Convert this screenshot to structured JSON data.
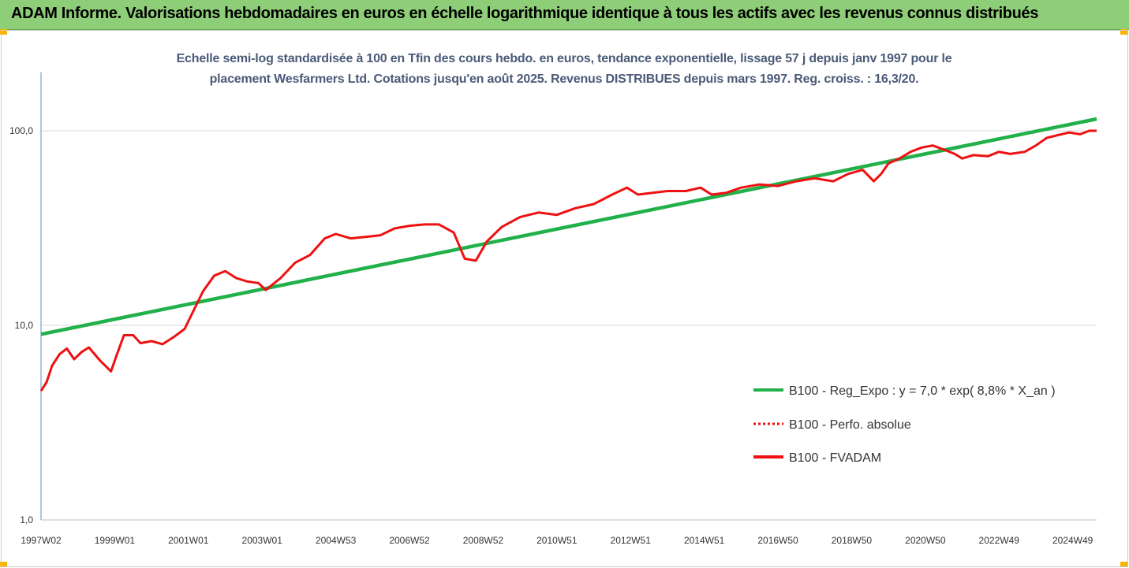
{
  "header": {
    "title": "ADAM Informe. Valorisations hebdomadaires en euros en échelle logarithmique identique à tous les actifs avec les revenus connus distribués"
  },
  "chart_data": {
    "type": "line",
    "title_lines": [
      "Echelle semi-log standardisée à 100 en Tfin des cours hebdo. en euros, tendance exponentielle, lissage 57 j depuis janv 1997 pour le",
      "placement Wesfarmers Ltd. Cotations jusqu'en août 2025. Revenus DISTRIBUES depuis mars 1997. Reg. croiss. : 16,3/20."
    ],
    "y_scale": "log",
    "ylim": [
      1,
      200
    ],
    "y_ticks": [
      1,
      10,
      100
    ],
    "y_tick_labels": [
      "1,0",
      "10,0",
      "100,0"
    ],
    "xlim": [
      1997.0,
      2025.65
    ],
    "x_ticks": [
      1997.0,
      1999.0,
      2001.0,
      2003.0,
      2005.0,
      2007.0,
      2009.0,
      2011.0,
      2013.0,
      2015.0,
      2017.0,
      2019.0,
      2021.0,
      2023.0,
      2025.0
    ],
    "x_tick_labels": [
      "1997W02",
      "1999W01",
      "2001W01",
      "2003W01",
      "2004W53",
      "2006W52",
      "2008W52",
      "2010W51",
      "2012W51",
      "2014W51",
      "2016W50",
      "2018W50",
      "2020W50",
      "2022W49",
      "2024W49"
    ],
    "grid": {
      "horizontal": true,
      "vertical": false
    },
    "legend_position": "right",
    "series": [
      {
        "name": "B100 - Reg_Expo : y = 7,0 * exp( 8,8% *  X_an )",
        "color": "#22b04b",
        "style": "solid",
        "x": [
          1997.0,
          2025.65
        ],
        "y": [
          9.0,
          115
        ]
      },
      {
        "name": "B100 - Perfo. absolue",
        "color": "#ee1111",
        "style": "dotted",
        "x": [],
        "y": []
      },
      {
        "name": "B100 - FVADAM",
        "color": "#ee1111",
        "style": "solid",
        "x": [
          1997.0,
          1997.15,
          1997.3,
          1997.5,
          1997.7,
          1997.9,
          1998.1,
          1998.3,
          1998.6,
          1998.9,
          1999.05,
          1999.25,
          1999.5,
          1999.7,
          2000.0,
          2000.3,
          2000.6,
          2000.9,
          2001.1,
          2001.4,
          2001.7,
          2002.0,
          2002.3,
          2002.6,
          2002.9,
          2003.1,
          2003.5,
          2003.9,
          2004.3,
          2004.7,
          2005.0,
          2005.4,
          2005.8,
          2006.2,
          2006.6,
          2007.0,
          2007.4,
          2007.8,
          2008.2,
          2008.5,
          2008.8,
          2009.1,
          2009.5,
          2010.0,
          2010.5,
          2011.0,
          2011.5,
          2012.0,
          2012.5,
          2012.9,
          2013.2,
          2013.6,
          2014.0,
          2014.5,
          2014.9,
          2015.2,
          2015.6,
          2016.0,
          2016.5,
          2017.0,
          2017.5,
          2018.0,
          2018.5,
          2018.9,
          2019.3,
          2019.6,
          2019.8,
          2020.0,
          2020.3,
          2020.6,
          2020.9,
          2021.2,
          2021.5,
          2021.8,
          2022.0,
          2022.3,
          2022.7,
          2023.0,
          2023.3,
          2023.7,
          2024.0,
          2024.3,
          2024.6,
          2024.9,
          2025.2,
          2025.45,
          2025.65
        ],
        "y": [
          4.6,
          5.1,
          6.2,
          7.1,
          7.6,
          6.7,
          7.3,
          7.7,
          6.6,
          5.8,
          7.0,
          8.9,
          8.9,
          8.1,
          8.3,
          8.0,
          8.7,
          9.6,
          11.5,
          15.0,
          18.0,
          19.0,
          17.5,
          16.8,
          16.5,
          15.2,
          17.5,
          21.0,
          23.0,
          28.0,
          29.5,
          28.0,
          28.5,
          29.0,
          31.5,
          32.5,
          33.0,
          33.0,
          30.0,
          22.0,
          21.5,
          27.0,
          32.0,
          36.0,
          38.0,
          37.0,
          40.0,
          42.0,
          47.0,
          51.0,
          47.0,
          48.0,
          49.0,
          49.0,
          51.0,
          47.0,
          48.0,
          51.0,
          53.0,
          52.0,
          55.0,
          57.0,
          55.0,
          60.0,
          63.0,
          55.0,
          60.0,
          68.0,
          72.0,
          78.0,
          82.0,
          84.0,
          80.0,
          76.0,
          72.0,
          75.0,
          74.0,
          78.0,
          76.0,
          78.0,
          84.0,
          92.0,
          95.0,
          98.0,
          96.0,
          100.0,
          100.0
        ]
      }
    ]
  }
}
